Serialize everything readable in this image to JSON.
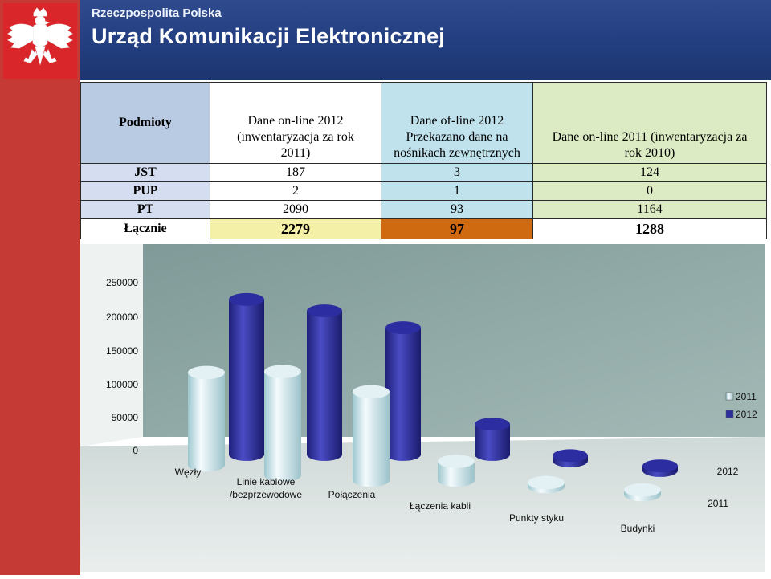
{
  "header": {
    "subtitle": "Rzeczpospolita Polska",
    "title": "Urząd Komunikacji Elektronicznej"
  },
  "table": {
    "headers": [
      "Podmioty",
      "Dane on-line 2012 (inwentaryzacja za rok 2011)",
      "Dane of-line 2012 Przekazano dane na nośnikach zewnętrznych",
      "Dane on-line 2011 (inwentaryzacja za rok 2010)"
    ],
    "header_lines": {
      "c1": [
        "Dane on-line 2012",
        "(inwentaryzacja za rok",
        "2011)"
      ],
      "c2": [
        "Dane of-line 2012",
        "Przekazano dane na",
        "nośnikach zewnętrznych"
      ],
      "c3": [
        "Dane on-line 2011 (inwentaryzacja za",
        "rok 2010)"
      ]
    },
    "rows": [
      {
        "label": "JST",
        "v1": "187",
        "v2": "3",
        "v3": "124"
      },
      {
        "label": "PUP",
        "v1": "2",
        "v2": "1",
        "v3": "0"
      },
      {
        "label": "PT",
        "v1": "2090",
        "v2": "93",
        "v3": "1164"
      },
      {
        "label": "Łącznie",
        "v1": "2279",
        "v2": "97",
        "v3": "1288"
      }
    ]
  },
  "colors": {
    "series_2011": "#cfe9f0",
    "series_2012": "#2c2e9c",
    "plot_wall": "#8fa8a4"
  },
  "chart_data": {
    "type": "bar",
    "categories": [
      "Węzły",
      "Linie kablowe /bezprzewodowe",
      "Połączenia",
      "Łączenia kabli",
      "Punkty styku",
      "Budynki"
    ],
    "series": [
      {
        "name": "2011",
        "values": [
          137000,
          154000,
          131000,
          28000,
          6000,
          7000
        ]
      },
      {
        "name": "2012",
        "values": [
          230000,
          213000,
          188000,
          45000,
          8000,
          7000
        ]
      }
    ],
    "y_ticks": [
      "250000",
      "200000",
      "150000",
      "100000",
      "50000",
      "0"
    ],
    "depth_labels": [
      "2012",
      "2011"
    ],
    "legend_position": "right",
    "ylim": [
      0,
      250000
    ],
    "grid": false
  }
}
